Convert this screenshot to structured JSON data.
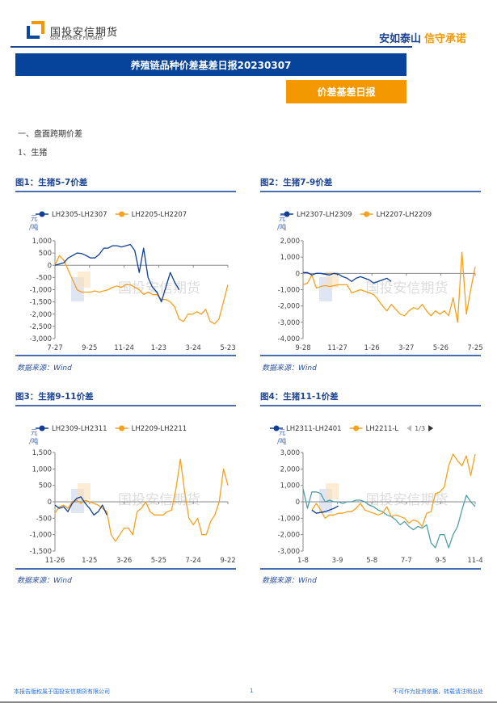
{
  "header": {
    "logo_cn": "国投安信期货",
    "logo_en": "SDIC ESSENCE FUTURES",
    "slogan_a": "安如泰山",
    "slogan_b": "信守承诺",
    "brand_blue": "#05449a",
    "brand_orange": "#f39800"
  },
  "report": {
    "title": "养殖链品种价差基差日报20230307",
    "tag": "价差基差日报",
    "section": "一、盘面跨期价差",
    "subsection": "1、生猪"
  },
  "watermark": "国投安信期货",
  "charts": [
    {
      "title": "图1：生猪5-7价差",
      "source": "数据来源：Wind",
      "unit": "元/吨",
      "chart_data": {
        "type": "line",
        "ylim": [
          -3000,
          1000
        ],
        "yticks": [
          1000,
          500,
          0,
          -500,
          -1000,
          -1500,
          -2000,
          -2500,
          -3000
        ],
        "ytick_labels": [
          "1,000",
          "500",
          "0",
          "-500",
          "-1,000",
          "-1,500",
          "-2,000",
          "-2,500",
          "-3,000"
        ],
        "xtick_labels": [
          "7-27",
          "9-25",
          "11-24",
          "1-23",
          "3-24",
          "5-23"
        ],
        "grid": false,
        "legend": "top",
        "series": [
          {
            "name": "LH2305-LH2307",
            "color": "#0f3f96",
            "values": [
              0,
              50,
              100,
              300,
              400,
              500,
              480,
              400,
              300,
              300,
              450,
              700,
              700,
              800,
              800,
              750,
              800,
              850,
              600,
              -300,
              700,
              -500,
              -900,
              -1100,
              -1500,
              -900,
              -300,
              -700,
              -1000
            ]
          },
          {
            "name": "LH2205-LH2207",
            "color": "#f7a01b",
            "values": [
              0,
              400,
              200,
              -200,
              -600,
              -1000,
              -1100,
              -1100,
              -1100,
              -1050,
              -1100,
              -1050,
              -1000,
              -900,
              -850,
              -900,
              -800,
              -800,
              -900,
              -1000,
              -1200,
              -1100,
              -1200,
              -1200,
              -1400,
              -1400,
              -1500,
              -1700,
              -2200,
              -2300,
              -2000,
              -2000,
              -1900,
              -2000,
              -1800,
              -2300,
              -2400,
              -2200,
              -1500,
              -800
            ]
          }
        ]
      }
    },
    {
      "title": "图2：生猪7-9价差",
      "source": "数据来源：Wind",
      "unit": "元/吨",
      "chart_data": {
        "type": "line",
        "ylim": [
          -4000,
          2000
        ],
        "yticks": [
          2000,
          1000,
          0,
          -1000,
          -2000,
          -3000,
          -4000
        ],
        "ytick_labels": [
          "2,000",
          "1,000",
          "0",
          "-1,000",
          "-2,000",
          "-3,000",
          "-4,000"
        ],
        "xtick_labels": [
          "9-28",
          "11-27",
          "1-26",
          "3-27",
          "5-26",
          "7-25"
        ],
        "grid": false,
        "legend": "top",
        "series": [
          {
            "name": "LH2307-LH2309",
            "color": "#0f3f96",
            "values": [
              50,
              50,
              -100,
              0,
              0,
              -50,
              -100,
              0,
              -50,
              -200,
              -300,
              -500,
              -300,
              -200,
              -300,
              -400,
              -600,
              -500,
              -400,
              -300,
              -500
            ]
          },
          {
            "name": "LH2207-LH2209",
            "color": "#f7a01b",
            "values": [
              -700,
              -600,
              -100,
              -900,
              -800,
              -750,
              -800,
              -750,
              -700,
              -700,
              -700,
              -1200,
              -1100,
              -1000,
              -1100,
              -1200,
              -1300,
              -1600,
              -2000,
              -2300,
              -1900,
              -2200,
              -2500,
              -2600,
              -2300,
              -2100,
              -2200,
              -1900,
              -2300,
              -2600,
              -2300,
              -2500,
              -2300,
              -2600,
              -1500,
              -3000,
              1300,
              -2500,
              -1000,
              400
            ]
          }
        ]
      }
    },
    {
      "title": "图3：生猪9-11价差",
      "source": "数据来源：Wind",
      "unit": "元/吨",
      "chart_data": {
        "type": "line",
        "ylim": [
          -1500,
          1500
        ],
        "yticks": [
          1500,
          1000,
          500,
          0,
          -500,
          -1000,
          -1500
        ],
        "ytick_labels": [
          "1,500",
          "1,000",
          "500",
          "0",
          "-500",
          "-1,000",
          "-1,500"
        ],
        "xtick_labels": [
          "11-26",
          "1-25",
          "3-26",
          "5-25",
          "7-24",
          "9-22"
        ],
        "grid": false,
        "legend": "top",
        "series": [
          {
            "name": "LH2309-LH2311",
            "color": "#0f3f96",
            "values": [
              -100,
              -200,
              -150,
              -300,
              -50,
              100,
              150,
              -50,
              -200,
              -400,
              -300,
              -100,
              -400
            ]
          },
          {
            "name": "LH2209-LH2211",
            "color": "#f7a01b",
            "values": [
              -350,
              -150,
              -100,
              -200,
              0,
              50,
              -50,
              50,
              0,
              -50,
              -100,
              -200,
              -300,
              -1000,
              -1200,
              -1000,
              -800,
              -800,
              -1000,
              -300,
              -200,
              0,
              -300,
              -400,
              -400,
              -400,
              -300,
              -250,
              400,
              1300,
              300,
              -500,
              -700,
              -500,
              -1000,
              -1000,
              -600,
              -400,
              0,
              1000,
              500
            ]
          }
        ]
      }
    },
    {
      "title": "图4：生猪11-1价差",
      "source": "数据来源：Wind",
      "unit": "元/吨",
      "legend_page": "1/3",
      "chart_data": {
        "type": "line",
        "ylim": [
          -3000,
          3000
        ],
        "yticks": [
          3000,
          2000,
          1000,
          0,
          -1000,
          -2000,
          -3000
        ],
        "ytick_labels": [
          "3,000",
          "2,000",
          "1,000",
          "0",
          "-1,000",
          "-2,000",
          "-3,000"
        ],
        "xtick_labels": [
          "1-8",
          "3-9",
          "5-8",
          "7-7",
          "9-5",
          "11-4"
        ],
        "grid": false,
        "legend": "top",
        "series": [
          {
            "name": "LH2311-LH2401",
            "color": "#0f3f96",
            "values": [
              null,
              null,
              -500,
              -700,
              -650,
              -600,
              -500,
              -400,
              -250
            ]
          },
          {
            "name": "LH2211-L",
            "color": "#f7a01b",
            "values": [
              null,
              null,
              -500,
              -100,
              -500,
              -1000,
              -800,
              -800,
              -700,
              -700,
              -600,
              -600,
              -400,
              -100,
              -500,
              -600,
              -700,
              -800,
              -700,
              -300,
              -900,
              -800,
              -900,
              -1000,
              -1300,
              -1100,
              -1200,
              -1500,
              -700,
              -600,
              500,
              600,
              900,
              2200,
              2900,
              2500,
              2200,
              2800,
              1600,
              2900
            ]
          },
          {
            "color": "#4f9ea8",
            "values": [
              800,
              -400,
              600,
              600,
              500,
              0,
              100,
              0,
              0,
              -100,
              0,
              0,
              100,
              100,
              0,
              -200,
              -300,
              -500,
              -600,
              -800,
              -900,
              -1100,
              -1400,
              -1200,
              -1500,
              -1700,
              -1500,
              -1600,
              -1400,
              -2500,
              -2800,
              -2000,
              -2000,
              -2800,
              -2000,
              -1500,
              -500,
              400,
              0,
              -300
            ]
          }
        ]
      }
    }
  ],
  "footer": {
    "left": "本报告版权属于国投安信期货有限公司",
    "page": "1",
    "right": "不可作为投资依据，转载请注明出处"
  }
}
